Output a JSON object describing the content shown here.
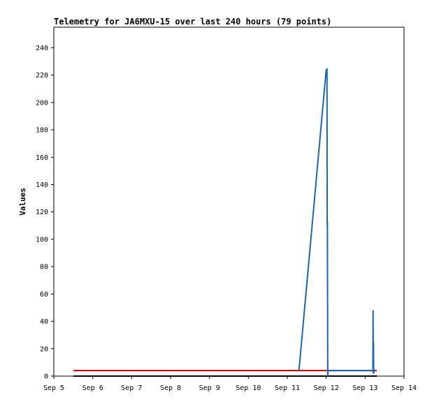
{
  "chart_data": {
    "type": "line",
    "title": "Telemetry for JA6MXU-15 over last 240 hours (79 points)",
    "xlabel": "",
    "ylabel": "Values",
    "x_ticks": [
      "Sep 5",
      "Sep 6",
      "Sep 7",
      "Sep 8",
      "Sep 9",
      "Sep 10",
      "Sep 11",
      "Sep 12",
      "Sep 13",
      "Sep 14"
    ],
    "xlim": [
      0,
      9
    ],
    "ylim": [
      0,
      255
    ],
    "y_ticks": [
      0,
      20,
      40,
      60,
      80,
      100,
      120,
      140,
      160,
      180,
      200,
      220,
      240
    ],
    "grid": false,
    "series": [
      {
        "color": "#000000",
        "x": [
          0.5,
          8.3
        ],
        "y": [
          0,
          0
        ]
      },
      {
        "color": "#cc0000",
        "x": [
          0.5,
          8.3
        ],
        "y": [
          4,
          4
        ]
      },
      {
        "color": "#1a66b3",
        "x": [
          6.3,
          7.0,
          7.01,
          7.02,
          7.025,
          7.03,
          7.04,
          7.05,
          8.2,
          8.205,
          8.21,
          8.215,
          8.22,
          8.23
        ],
        "y": [
          4,
          224,
          218,
          225,
          110,
          113,
          0,
          4,
          4,
          48,
          2,
          25,
          2,
          4
        ]
      }
    ]
  }
}
